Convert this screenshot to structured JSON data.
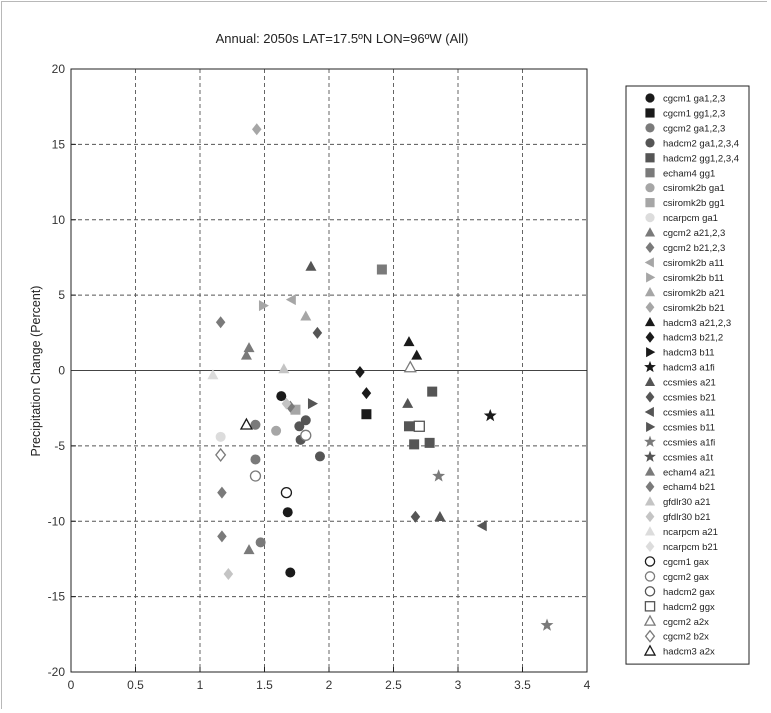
{
  "colors": {
    "black": "#1a1a1a",
    "dark": "#555555",
    "mid": "#7a7a7a",
    "light": "#a6a6a6",
    "pale": "#c4c4c4",
    "faint": "#dcdcdc"
  },
  "chart_data": {
    "type": "scatter",
    "title": "Annual: 2050s LAT=17.5ºN LON=96ºW (All)",
    "xlabel": "",
    "ylabel": "Precipitation Change (Percent)",
    "xlim": [
      0,
      4
    ],
    "ylim": [
      -20,
      20
    ],
    "xticks": [
      "0",
      "0.5",
      "1",
      "1.5",
      "2",
      "2.5",
      "3",
      "3.5",
      "4"
    ],
    "yticks": [
      "20",
      "15",
      "10",
      "5",
      "0",
      "-5",
      "-10",
      "-15",
      "-20"
    ],
    "grid": true,
    "legend_position": "right",
    "series": [
      {
        "name": "cgcm1 ga1,2,3",
        "marker": "circle",
        "fill": "black",
        "points": [
          [
            1.63,
            -1.7
          ],
          [
            1.68,
            -9.4
          ],
          [
            1.7,
            -13.4
          ]
        ]
      },
      {
        "name": "cgcm1 gg1,2,3",
        "marker": "square",
        "fill": "black",
        "points": [
          [
            2.29,
            -2.9
          ]
        ]
      },
      {
        "name": "cgcm2 ga1,2,3",
        "marker": "circle",
        "fill": "mid",
        "points": [
          [
            1.43,
            -5.9
          ],
          [
            1.47,
            -11.4
          ],
          [
            1.43,
            -3.6
          ]
        ]
      },
      {
        "name": "hadcm2 ga1,2,3,4",
        "marker": "circle",
        "fill": "dark",
        "points": [
          [
            1.82,
            -3.3
          ],
          [
            1.78,
            -4.6
          ],
          [
            1.93,
            -5.7
          ],
          [
            1.77,
            -3.7
          ]
        ]
      },
      {
        "name": "hadcm2 gg1,2,3,4",
        "marker": "square",
        "fill": "dark",
        "points": [
          [
            2.62,
            -3.7
          ],
          [
            2.66,
            -4.9
          ],
          [
            2.78,
            -4.8
          ],
          [
            2.8,
            -1.4
          ]
        ]
      },
      {
        "name": "echam4 gg1",
        "marker": "square",
        "fill": "mid",
        "points": [
          [
            2.41,
            6.7
          ]
        ]
      },
      {
        "name": "csiromk2b ga1",
        "marker": "circle",
        "fill": "light",
        "points": [
          [
            1.59,
            -4.0
          ]
        ]
      },
      {
        "name": "csiromk2b gg1",
        "marker": "square",
        "fill": "light",
        "points": [
          [
            1.74,
            -2.6
          ]
        ]
      },
      {
        "name": "ncarpcm ga1",
        "marker": "circle",
        "fill": "faint",
        "points": [
          [
            1.16,
            -4.4
          ]
        ]
      },
      {
        "name": "cgcm2 a21,2,3",
        "marker": "triangle-up",
        "fill": "mid",
        "points": [
          [
            1.36,
            1.0
          ],
          [
            1.38,
            -11.9
          ]
        ]
      },
      {
        "name": "cgcm2 b21,2,3",
        "marker": "diamond",
        "fill": "mid",
        "points": [
          [
            1.16,
            3.2
          ],
          [
            1.17,
            -8.1
          ],
          [
            1.17,
            -11.0
          ]
        ]
      },
      {
        "name": "csiromk2b a11",
        "marker": "triangle-left",
        "fill": "light",
        "points": [
          [
            1.71,
            4.7
          ]
        ]
      },
      {
        "name": "csiromk2b b11",
        "marker": "triangle-right",
        "fill": "light",
        "points": [
          [
            1.49,
            4.3
          ]
        ]
      },
      {
        "name": "csiromk2b a21",
        "marker": "triangle-up",
        "fill": "light",
        "points": [
          [
            1.82,
            3.6
          ]
        ]
      },
      {
        "name": "csiromk2b b21",
        "marker": "diamond",
        "fill": "light",
        "points": [
          [
            1.44,
            16.0
          ]
        ]
      },
      {
        "name": "hadcm3 a21,2,3",
        "marker": "triangle-up",
        "fill": "black",
        "points": [
          [
            2.62,
            1.9
          ],
          [
            2.68,
            1.0
          ]
        ]
      },
      {
        "name": "hadcm3 b21,2",
        "marker": "diamond",
        "fill": "black",
        "points": [
          [
            2.24,
            -0.1
          ],
          [
            2.29,
            -1.5
          ]
        ]
      },
      {
        "name": "hadcm3 b11",
        "marker": "triangle-right",
        "fill": "black",
        "points": []
      },
      {
        "name": "hadcm3 a1fi",
        "marker": "star",
        "fill": "black",
        "points": [
          [
            3.25,
            -3.0
          ]
        ]
      },
      {
        "name": "ccsmies a21",
        "marker": "triangle-up",
        "fill": "dark",
        "points": [
          [
            1.86,
            6.9
          ],
          [
            2.61,
            -2.2
          ],
          [
            2.86,
            -9.7
          ]
        ]
      },
      {
        "name": "ccsmies b21",
        "marker": "diamond",
        "fill": "dark",
        "points": [
          [
            1.91,
            2.5
          ],
          [
            2.67,
            -9.7
          ]
        ]
      },
      {
        "name": "ccsmies a11",
        "marker": "triangle-left",
        "fill": "dark",
        "points": [
          [
            3.19,
            -10.3
          ]
        ]
      },
      {
        "name": "ccsmies b11",
        "marker": "triangle-right",
        "fill": "dark",
        "points": [
          [
            1.87,
            -2.2
          ]
        ]
      },
      {
        "name": "ccsmies a1fi",
        "marker": "star",
        "fill": "mid",
        "points": [
          [
            2.85,
            -7.0
          ],
          [
            3.69,
            -16.9
          ]
        ]
      },
      {
        "name": "ccsmies a1t",
        "marker": "star",
        "fill": "dark",
        "points": []
      },
      {
        "name": "echam4 a21",
        "marker": "triangle-up",
        "fill": "mid",
        "points": [
          [
            1.38,
            1.5
          ]
        ]
      },
      {
        "name": "echam4 b21",
        "marker": "diamond",
        "fill": "mid",
        "points": [
          [
            1.7,
            -2.4
          ]
        ]
      },
      {
        "name": "gfdlr30 a21",
        "marker": "triangle-up",
        "fill": "pale",
        "points": [
          [
            1.65,
            0.1
          ]
        ]
      },
      {
        "name": "gfdlr30 b21",
        "marker": "diamond",
        "fill": "pale",
        "points": [
          [
            1.67,
            -2.2
          ],
          [
            1.22,
            -13.5
          ]
        ]
      },
      {
        "name": "ncarpcm a21",
        "marker": "triangle-up",
        "fill": "faint",
        "points": [
          [
            1.1,
            -0.3
          ]
        ]
      },
      {
        "name": "ncarpcm b21",
        "marker": "diamond",
        "fill": "faint",
        "points": []
      },
      {
        "name": "cgcm1 gax",
        "marker": "circle",
        "fill": "none-black",
        "points": [
          [
            1.67,
            -8.1
          ]
        ]
      },
      {
        "name": "cgcm2 gax",
        "marker": "circle",
        "fill": "none-mid",
        "points": [
          [
            1.43,
            -7.0
          ],
          [
            1.82,
            -4.3
          ]
        ]
      },
      {
        "name": "hadcm2 gax",
        "marker": "circle",
        "fill": "none-dark",
        "points": []
      },
      {
        "name": "hadcm2 ggx",
        "marker": "square",
        "fill": "none-dark",
        "points": [
          [
            2.7,
            -3.7
          ]
        ]
      },
      {
        "name": "cgcm2 a2x",
        "marker": "triangle-up",
        "fill": "none-mid",
        "points": [
          [
            2.63,
            0.2
          ]
        ]
      },
      {
        "name": "cgcm2 b2x",
        "marker": "diamond",
        "fill": "none-mid",
        "points": [
          [
            1.16,
            -5.6
          ]
        ]
      },
      {
        "name": "hadcm3 a2x",
        "marker": "triangle-up",
        "fill": "none-black",
        "points": [
          [
            1.36,
            -3.6
          ]
        ]
      }
    ]
  }
}
